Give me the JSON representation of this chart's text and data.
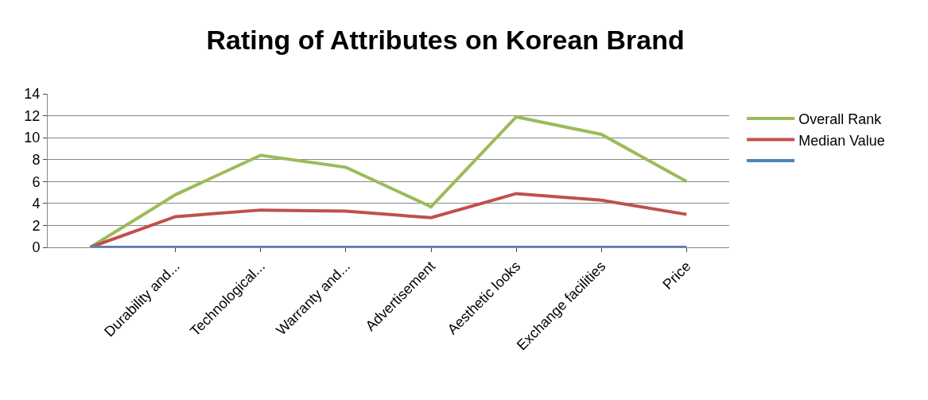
{
  "chart_data": {
    "type": "line",
    "title": "Rating of Attributes on Korean Brand",
    "categories": [
      null,
      "Durability and...",
      "Technological...",
      "Warranty and...",
      "Advertisement",
      "Aesthetic looks",
      "Exchange facilities",
      "Price"
    ],
    "series": [
      {
        "name": "Overall Rank",
        "color": "#9bbb59",
        "values": [
          0,
          4.8,
          8.4,
          7.3,
          3.7,
          11.9,
          10.3,
          6.0
        ]
      },
      {
        "name": "Median Value",
        "color": "#c0504d",
        "values": [
          0,
          2.8,
          3.4,
          3.3,
          2.7,
          4.9,
          4.3,
          3.0
        ]
      },
      {
        "color": "#4f81bd",
        "values": [
          0,
          0,
          0,
          0,
          0,
          0,
          0,
          0
        ]
      }
    ],
    "ylim": [
      0,
      14
    ],
    "yticks": [
      0,
      2,
      4,
      6,
      8,
      10,
      12,
      14
    ],
    "grid": "y",
    "legend": "right",
    "marker": "none",
    "line_style": "solid"
  }
}
